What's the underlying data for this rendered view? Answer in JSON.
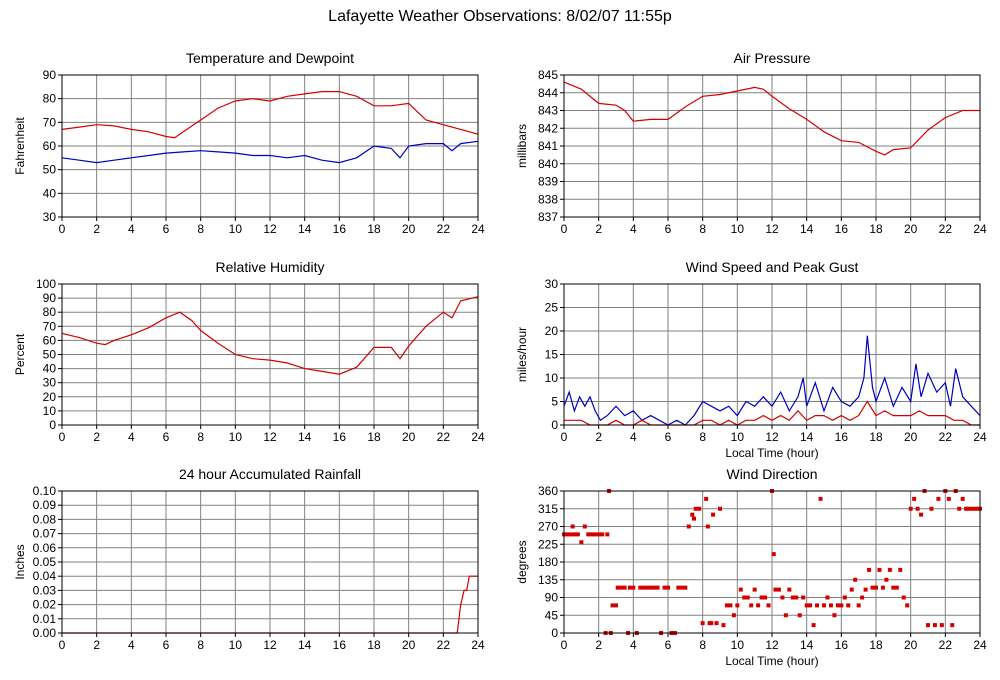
{
  "page": {
    "title": "Lafayette Weather Observations: 8/02/07 11:55p"
  },
  "colors": {
    "red": "#d40000",
    "blue": "#0000c0",
    "grid": "#808080",
    "frame": "#000000"
  },
  "chart_data": [
    {
      "id": "temp",
      "type": "line",
      "title": "Temperature and Dewpoint",
      "ylabel": "Fahrenheit",
      "xlabel": "",
      "xlim": [
        0,
        24
      ],
      "ylim": [
        30,
        90
      ],
      "xticks": [
        0,
        2,
        4,
        6,
        8,
        10,
        12,
        14,
        16,
        18,
        20,
        22,
        24
      ],
      "yticks": [
        30,
        40,
        50,
        60,
        70,
        80,
        90
      ],
      "series": [
        {
          "color": "red",
          "x": [
            0,
            1,
            2,
            3,
            4,
            5,
            6,
            6.5,
            7,
            8,
            9,
            10,
            11,
            12,
            13,
            14,
            15,
            16,
            17,
            18,
            19,
            20,
            21,
            22,
            23,
            24
          ],
          "y": [
            67,
            68,
            69,
            68.5,
            67,
            66,
            64,
            63.5,
            66,
            71,
            76,
            79,
            80,
            79,
            81,
            82,
            83,
            83,
            81,
            77,
            77,
            78,
            71,
            69,
            67,
            65
          ]
        },
        {
          "color": "blue",
          "x": [
            0,
            1,
            2,
            3,
            4,
            5,
            6,
            7,
            8,
            9,
            10,
            11,
            12,
            13,
            14,
            15,
            16,
            17,
            18,
            19,
            19.5,
            20,
            21,
            22,
            22.5,
            23,
            24
          ],
          "y": [
            55,
            54,
            53,
            54,
            55,
            56,
            57,
            57.5,
            58,
            57.5,
            57,
            56,
            56,
            55,
            56,
            54,
            53,
            55,
            60,
            59,
            55,
            60,
            61,
            61,
            58,
            61,
            62
          ]
        }
      ]
    },
    {
      "id": "pressure",
      "type": "line",
      "title": "Air Pressure",
      "ylabel": "millibars",
      "xlabel": "",
      "xlim": [
        0,
        24
      ],
      "ylim": [
        837,
        845
      ],
      "xticks": [
        0,
        2,
        4,
        6,
        8,
        10,
        12,
        14,
        16,
        18,
        20,
        22,
        24
      ],
      "yticks": [
        837,
        838,
        839,
        840,
        841,
        842,
        843,
        844,
        845
      ],
      "series": [
        {
          "color": "red",
          "x": [
            0,
            1,
            2,
            3,
            3.5,
            4,
            5,
            6,
            7,
            8,
            9,
            10,
            11,
            11.5,
            12,
            13,
            14,
            15,
            16,
            17,
            18,
            18.5,
            19,
            20,
            21,
            22,
            23,
            24
          ],
          "y": [
            844.6,
            844.2,
            843.4,
            843.3,
            843.0,
            842.4,
            842.5,
            842.5,
            843.2,
            843.8,
            843.9,
            844.1,
            844.3,
            844.2,
            843.8,
            843.1,
            842.5,
            841.8,
            841.3,
            841.2,
            840.7,
            840.5,
            840.8,
            840.9,
            841.9,
            842.6,
            843.0,
            843.0
          ]
        }
      ]
    },
    {
      "id": "humidity",
      "type": "line",
      "title": "Relative Humidity",
      "ylabel": "Percent",
      "xlabel": "",
      "xlim": [
        0,
        24
      ],
      "ylim": [
        0,
        100
      ],
      "xticks": [
        0,
        2,
        4,
        6,
        8,
        10,
        12,
        14,
        16,
        18,
        20,
        22,
        24
      ],
      "yticks": [
        0,
        10,
        20,
        30,
        40,
        50,
        60,
        70,
        80,
        90,
        100
      ],
      "series": [
        {
          "color": "red",
          "x": [
            0,
            1,
            2,
            2.5,
            3,
            4,
            5,
            6,
            6.8,
            7.5,
            8,
            9,
            10,
            11,
            12,
            13,
            14,
            15,
            16,
            17,
            18,
            19,
            19.5,
            20,
            21,
            22,
            22.5,
            23,
            24
          ],
          "y": [
            65,
            62,
            58,
            57,
            60,
            64,
            69,
            76,
            80,
            74,
            67,
            58,
            50,
            47,
            46,
            44,
            40,
            38,
            36,
            41,
            55,
            55,
            47,
            56,
            70,
            80,
            76,
            88,
            91
          ]
        }
      ]
    },
    {
      "id": "wind",
      "type": "line",
      "title": "Wind Speed and Peak Gust",
      "ylabel": "miles/hour",
      "xlabel": "Local Time (hour)",
      "xlim": [
        0,
        24
      ],
      "ylim": [
        0,
        30
      ],
      "xticks": [
        0,
        2,
        4,
        6,
        8,
        10,
        12,
        14,
        16,
        18,
        20,
        22,
        24
      ],
      "yticks": [
        0,
        5,
        10,
        15,
        20,
        25,
        30
      ],
      "series": [
        {
          "color": "blue",
          "x": [
            0,
            0.3,
            0.6,
            0.9,
            1.2,
            1.5,
            1.8,
            2.1,
            2.5,
            3,
            3.5,
            4,
            4.5,
            5,
            5.5,
            6,
            6.5,
            7,
            7.5,
            8,
            8.5,
            9,
            9.5,
            10,
            10.5,
            11,
            11.5,
            12,
            12.5,
            13,
            13.5,
            13.8,
            14,
            14.5,
            15,
            15.5,
            16,
            16.5,
            17,
            17.3,
            17.5,
            17.8,
            18,
            18.5,
            19,
            19.5,
            20,
            20.3,
            20.6,
            21,
            21.5,
            22,
            22.3,
            22.6,
            23,
            23.5,
            24
          ],
          "y": [
            4,
            7,
            3,
            6,
            4,
            6,
            3,
            1,
            2,
            4,
            2,
            3,
            1,
            2,
            1,
            0,
            1,
            0,
            2,
            5,
            4,
            3,
            4,
            2,
            5,
            4,
            6,
            4,
            7,
            3,
            6,
            10,
            4,
            9,
            3,
            8,
            5,
            4,
            6,
            10,
            19,
            8,
            5,
            10,
            4,
            8,
            5,
            13,
            6,
            11,
            7,
            9,
            4,
            12,
            6,
            4,
            2
          ]
        },
        {
          "color": "red",
          "x": [
            0,
            0.5,
            1,
            1.5,
            2,
            2.5,
            3,
            3.5,
            4,
            4.5,
            5,
            5.5,
            6,
            6.5,
            7,
            7.5,
            8,
            8.5,
            9,
            9.5,
            10,
            10.5,
            11,
            11.5,
            12,
            12.5,
            13,
            13.5,
            14,
            14.5,
            15,
            15.5,
            16,
            16.5,
            17,
            17.5,
            18,
            18.5,
            19,
            19.5,
            20,
            20.5,
            21,
            21.5,
            22,
            22.5,
            23,
            23.5,
            24
          ],
          "y": [
            1,
            1,
            1,
            0,
            0,
            0,
            1,
            0,
            0,
            1,
            0,
            0,
            0,
            0,
            0,
            0,
            1,
            1,
            0,
            1,
            0,
            1,
            1,
            2,
            1,
            2,
            1,
            3,
            1,
            2,
            2,
            1,
            2,
            1,
            2,
            5,
            2,
            3,
            2,
            2,
            2,
            3,
            2,
            2,
            2,
            1,
            1,
            0,
            0
          ]
        }
      ]
    },
    {
      "id": "rain",
      "type": "line",
      "title": "24 hour Accumulated Rainfall",
      "ylabel": "Inches",
      "xlabel": "",
      "xlim": [
        0,
        24
      ],
      "ylim": [
        0,
        0.1
      ],
      "xticks": [
        0,
        2,
        4,
        6,
        8,
        10,
        12,
        14,
        16,
        18,
        20,
        22,
        24
      ],
      "yticks": [
        "0.00",
        "0.01",
        "0.02",
        "0.03",
        "0.04",
        "0.05",
        "0.06",
        "0.07",
        "0.08",
        "0.09",
        "0.10"
      ],
      "series": [
        {
          "color": "red",
          "x": [
            0,
            22.8,
            23.0,
            23.2,
            23.35,
            23.5,
            24
          ],
          "y": [
            0,
            0,
            0.02,
            0.03,
            0.03,
            0.04,
            0.04
          ]
        }
      ]
    },
    {
      "id": "direction",
      "type": "scatter",
      "title": "Wind Direction",
      "ylabel": "degrees",
      "xlabel": "Local Time (hour)",
      "xlim": [
        0,
        24
      ],
      "ylim": [
        0,
        360
      ],
      "xticks": [
        0,
        2,
        4,
        6,
        8,
        10,
        12,
        14,
        16,
        18,
        20,
        22,
        24
      ],
      "yticks": [
        0,
        45,
        90,
        135,
        180,
        225,
        270,
        315,
        360
      ],
      "series": [
        {
          "color": "red",
          "x": [
            0,
            0.2,
            0.4,
            0.5,
            0.6,
            0.8,
            1.0,
            1.2,
            1.4,
            1.6,
            1.8,
            2.0,
            2.2,
            2.4,
            2.5,
            2.6,
            2.7,
            2.8,
            3.0,
            3.1,
            3.3,
            3.5,
            3.7,
            3.8,
            4.0,
            4.2,
            4.4,
            4.6,
            4.8,
            5.0,
            5.2,
            5.4,
            5.6,
            5.8,
            6.0,
            6.2,
            6.4,
            6.6,
            6.8,
            7.0,
            7.2,
            7.4,
            7.5,
            7.6,
            7.8,
            8.0,
            8.2,
            8.3,
            8.4,
            8.5,
            8.6,
            8.8,
            9.0,
            9.2,
            9.4,
            9.6,
            9.8,
            10.0,
            10.2,
            10.4,
            10.6,
            10.8,
            11.0,
            11.2,
            11.4,
            11.6,
            11.8,
            12.0,
            12.1,
            12.2,
            12.4,
            12.6,
            12.8,
            13.0,
            13.2,
            13.4,
            13.6,
            13.8,
            14.0,
            14.2,
            14.4,
            14.6,
            14.8,
            15.0,
            15.2,
            15.4,
            15.6,
            15.8,
            16.0,
            16.2,
            16.4,
            16.6,
            16.8,
            17.0,
            17.2,
            17.4,
            17.6,
            17.8,
            18.0,
            18.2,
            18.4,
            18.6,
            18.8,
            19.0,
            19.2,
            19.4,
            19.6,
            19.8,
            20.0,
            20.2,
            20.4,
            20.6,
            20.8,
            21.0,
            21.2,
            21.4,
            21.6,
            21.8,
            22.0,
            22.2,
            22.4,
            22.6,
            22.8,
            23.0,
            23.2,
            23.4,
            23.6,
            23.8,
            24.0
          ],
          "y": [
            250,
            250,
            250,
            270,
            250,
            250,
            230,
            270,
            250,
            250,
            250,
            250,
            250,
            0,
            250,
            370,
            0,
            70,
            70,
            115,
            115,
            115,
            0,
            115,
            115,
            0,
            115,
            115,
            115,
            115,
            115,
            115,
            0,
            115,
            115,
            0,
            0,
            115,
            115,
            115,
            270,
            300,
            290,
            315,
            315,
            25,
            340,
            270,
            25,
            25,
            300,
            25,
            315,
            20,
            70,
            70,
            45,
            70,
            110,
            90,
            90,
            70,
            110,
            70,
            90,
            90,
            70,
            370,
            200,
            110,
            110,
            90,
            45,
            110,
            90,
            90,
            45,
            90,
            70,
            70,
            20,
            70,
            340,
            70,
            90,
            70,
            45,
            70,
            70,
            90,
            70,
            110,
            135,
            70,
            90,
            110,
            160,
            115,
            115,
            160,
            115,
            135,
            160,
            115,
            115,
            160,
            90,
            70,
            315,
            340,
            315,
            300,
            370,
            20,
            315,
            20,
            340,
            20,
            370,
            340,
            20,
            370,
            315,
            340,
            315,
            315,
            315,
            315,
            315
          ]
        }
      ]
    }
  ]
}
